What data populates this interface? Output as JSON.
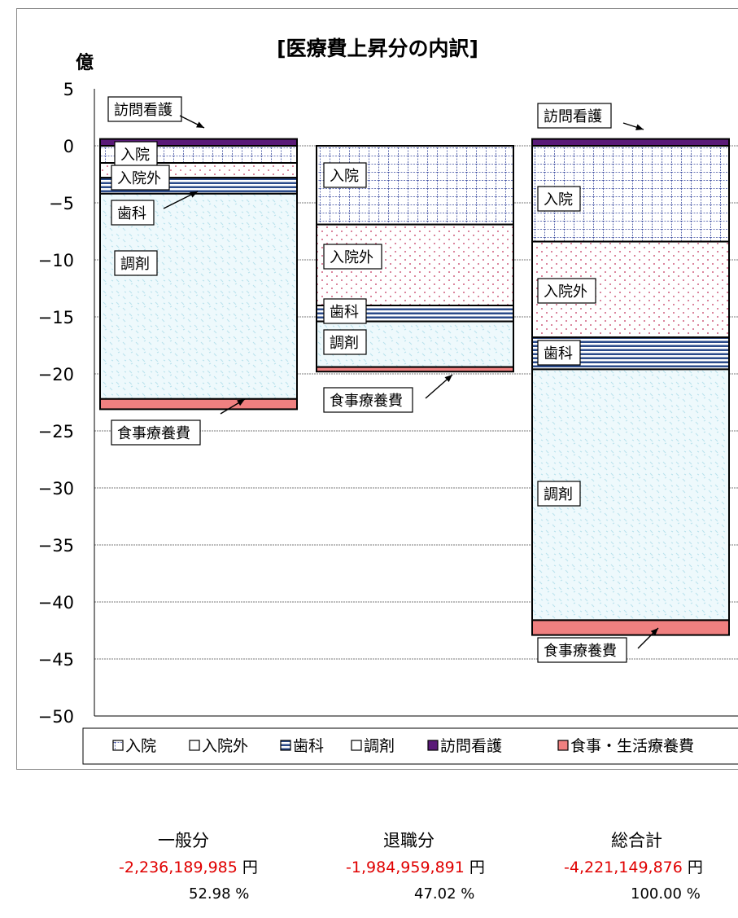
{
  "chart_data": {
    "type": "bar",
    "stacked": true,
    "title": "[医療費上昇分の内訳]",
    "ylabel": "億",
    "ylim": [
      -50,
      5
    ],
    "yticks": [
      5,
      0,
      -5,
      -10,
      -15,
      -20,
      -25,
      -30,
      -35,
      -40,
      -45,
      -50
    ],
    "grid": true,
    "legend_position": "bottom",
    "categories": [
      "一般分",
      "退職分",
      "総合計"
    ],
    "series": [
      {
        "name": "入院",
        "values": [
          -1.5,
          -6.9,
          -8.4
        ],
        "color": "#3b4ba0",
        "pattern": "grid"
      },
      {
        "name": "入院外",
        "values": [
          -1.3,
          -7.1,
          -8.4
        ],
        "color": "#e080a0",
        "pattern": "dots"
      },
      {
        "name": "歯科",
        "values": [
          -1.4,
          -1.4,
          -2.8
        ],
        "color": "#2a4a8a",
        "pattern": "hlines"
      },
      {
        "name": "調剤",
        "values": [
          -18.0,
          -4.0,
          -22.0
        ],
        "color": "#a8dce8",
        "pattern": "light"
      },
      {
        "name": "訪問看護",
        "values": [
          0.6,
          0.0,
          0.6
        ],
        "color": "#5a1a78",
        "pattern": "solid"
      },
      {
        "name": "食事・生活療養費",
        "values": [
          -0.9,
          -0.4,
          -1.3
        ],
        "color": "#f08080",
        "pattern": "solid"
      }
    ],
    "annotations": {
      "col1": [
        "訪問看護",
        "入院",
        "入院外",
        "歯科",
        "調剤",
        "食事療養費"
      ],
      "col2": [
        "入院",
        "入院外",
        "歯科",
        "調剤",
        "食事療養費"
      ],
      "col3": [
        "訪問看護",
        "入院",
        "入院外",
        "歯科",
        "調剤",
        "食事療養費"
      ]
    }
  },
  "summary": {
    "headers": [
      "一般分",
      "退職分",
      "総合計"
    ],
    "amounts": [
      "-2,236,189,985",
      "-1,984,959,891",
      "-4,221,149,876"
    ],
    "currency": "円",
    "percents": [
      "52.98",
      "47.02",
      "100.00"
    ],
    "percent_sign": "%"
  }
}
